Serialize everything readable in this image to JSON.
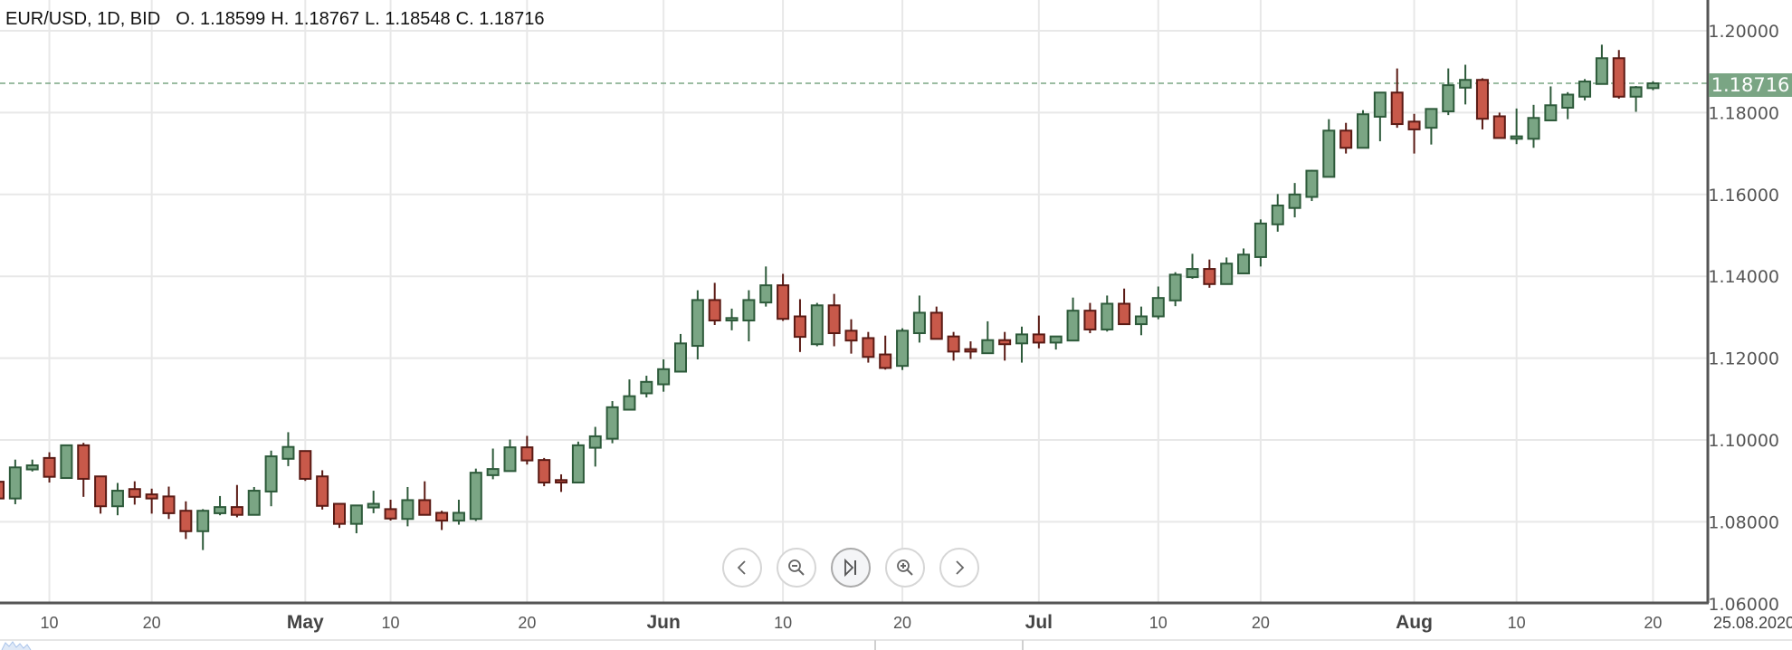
{
  "header": {
    "symbol": "EUR/USD, 1D, BID",
    "open": "O. 1.18599",
    "high": "H. 1.18767",
    "low": "L. 1.18548",
    "close": "C. 1.18716"
  },
  "current_price_label": "1.18716",
  "current_date_label": "25.08.2020",
  "nav_buttons": [
    {
      "name": "scroll-left-button",
      "icon": "chevron-left-icon"
    },
    {
      "name": "zoom-out-button",
      "icon": "zoom-out-icon"
    },
    {
      "name": "reset-to-latest-button",
      "icon": "skip-to-end-icon"
    },
    {
      "name": "zoom-in-button",
      "icon": "zoom-in-icon"
    },
    {
      "name": "scroll-right-button",
      "icon": "chevron-right-icon"
    }
  ],
  "colors": {
    "up_fill": "#7aa584",
    "up_stroke": "#2d5a3a",
    "down_fill": "#c8594a",
    "down_stroke": "#5a1a14",
    "last_price": "#7aa584"
  },
  "chart_data": {
    "type": "candlestick",
    "title": "EUR/USD, 1D, BID",
    "ylim": [
      1.06,
      1.2075
    ],
    "y_ticks": [
      "1.20000",
      "1.18000",
      "1.16000",
      "1.14000",
      "1.12000",
      "1.10000",
      "1.08000",
      "1.06000"
    ],
    "y_tick_values": [
      1.2,
      1.18,
      1.16,
      1.14,
      1.12,
      1.1,
      1.08,
      1.06
    ],
    "x_ticks": [
      {
        "label": "10",
        "index": 3,
        "bold": false
      },
      {
        "label": "20",
        "index": 9,
        "bold": false
      },
      {
        "label": "May",
        "index": 18,
        "bold": true
      },
      {
        "label": "10",
        "index": 23,
        "bold": false
      },
      {
        "label": "20",
        "index": 31,
        "bold": false
      },
      {
        "label": "Jun",
        "index": 39,
        "bold": true
      },
      {
        "label": "10",
        "index": 46,
        "bold": false
      },
      {
        "label": "20",
        "index": 53,
        "bold": false
      },
      {
        "label": "Jul",
        "index": 61,
        "bold": true
      },
      {
        "label": "10",
        "index": 68,
        "bold": false
      },
      {
        "label": "20",
        "index": 74,
        "bold": false
      },
      {
        "label": "Aug",
        "index": 83,
        "bold": true
      },
      {
        "label": "10",
        "index": 89,
        "bold": false
      },
      {
        "label": "20",
        "index": 97,
        "bold": false
      }
    ],
    "last_price": 1.18716,
    "ohlc_fields": [
      "open",
      "high",
      "low",
      "close"
    ],
    "ohlc": [
      [
        1.0898,
        1.0905,
        1.085,
        1.0857
      ],
      [
        1.0857,
        1.0952,
        1.0843,
        1.0933
      ],
      [
        1.0928,
        1.0952,
        1.0923,
        1.0938
      ],
      [
        1.0956,
        1.097,
        1.0896,
        1.091
      ],
      [
        1.0907,
        1.0987,
        1.0905,
        1.0987
      ],
      [
        1.0987,
        1.0993,
        1.0861,
        1.0905
      ],
      [
        1.0911,
        1.0911,
        1.082,
        1.0838
      ],
      [
        1.0838,
        1.0895,
        1.0816,
        1.0876
      ],
      [
        1.088,
        1.0899,
        1.0842,
        1.0861
      ],
      [
        1.0867,
        1.0881,
        1.082,
        1.0857
      ],
      [
        1.0862,
        1.0886,
        1.0807,
        1.0821
      ],
      [
        1.0827,
        1.085,
        1.0758,
        1.0777
      ],
      [
        1.0777,
        1.0831,
        1.0731,
        1.0827
      ],
      [
        1.0821,
        1.0863,
        1.0816,
        1.0836
      ],
      [
        1.0836,
        1.089,
        1.0811,
        1.0817
      ],
      [
        1.0817,
        1.0885,
        1.0817,
        1.0876
      ],
      [
        1.0874,
        1.0974,
        1.0838,
        1.096
      ],
      [
        1.0954,
        1.1019,
        1.0936,
        1.0983
      ],
      [
        1.0973,
        1.0973,
        1.09,
        1.0905
      ],
      [
        1.0911,
        1.0926,
        1.083,
        1.0839
      ],
      [
        1.0844,
        1.0844,
        1.0785,
        1.0795
      ],
      [
        1.0795,
        1.084,
        1.0772,
        1.084
      ],
      [
        1.0835,
        1.0876,
        1.0821,
        1.0844
      ],
      [
        1.0831,
        1.0854,
        1.0803,
        1.0808
      ],
      [
        1.0807,
        1.0885,
        1.0789,
        1.0853
      ],
      [
        1.0853,
        1.0899,
        1.0817,
        1.0817
      ],
      [
        1.0822,
        1.0827,
        1.078,
        1.0803
      ],
      [
        1.0803,
        1.0854,
        1.0793,
        1.0822
      ],
      [
        1.0807,
        1.093,
        1.0802,
        1.092
      ],
      [
        1.0914,
        1.0979,
        1.0904,
        1.0929
      ],
      [
        1.0924,
        1.1001,
        1.0924,
        1.0982
      ],
      [
        1.0982,
        1.101,
        1.094,
        1.095
      ],
      [
        1.0951,
        1.0956,
        1.0887,
        1.0896
      ],
      [
        1.0902,
        1.0916,
        1.0873,
        1.0896
      ],
      [
        1.0896,
        1.0996,
        1.0896,
        1.0987
      ],
      [
        1.0981,
        1.1032,
        1.0935,
        1.1009
      ],
      [
        1.1003,
        1.1095,
        1.0992,
        1.108
      ],
      [
        1.1074,
        1.1148,
        1.1074,
        1.1107
      ],
      [
        1.1114,
        1.1157,
        1.1104,
        1.1142
      ],
      [
        1.1136,
        1.1197,
        1.1118,
        1.1173
      ],
      [
        1.1167,
        1.1259,
        1.1167,
        1.1236
      ],
      [
        1.123,
        1.1366,
        1.1197,
        1.1342
      ],
      [
        1.1342,
        1.1384,
        1.1281,
        1.1292
      ],
      [
        1.1292,
        1.1321,
        1.1268,
        1.1298
      ],
      [
        1.1292,
        1.1366,
        1.1241,
        1.1342
      ],
      [
        1.1336,
        1.1424,
        1.1326,
        1.1378
      ],
      [
        1.1378,
        1.1406,
        1.1291,
        1.1296
      ],
      [
        1.1302,
        1.1344,
        1.1215,
        1.1252
      ],
      [
        1.1234,
        1.1335,
        1.1229,
        1.1329
      ],
      [
        1.1329,
        1.1357,
        1.1229,
        1.1261
      ],
      [
        1.1267,
        1.1295,
        1.1211,
        1.1243
      ],
      [
        1.1249,
        1.1264,
        1.1189,
        1.1203
      ],
      [
        1.1209,
        1.1255,
        1.1172,
        1.1176
      ],
      [
        1.1181,
        1.1273,
        1.1171,
        1.1267
      ],
      [
        1.1261,
        1.1353,
        1.1238,
        1.1311
      ],
      [
        1.1311,
        1.1326,
        1.1247,
        1.1247
      ],
      [
        1.1253,
        1.1264,
        1.1194,
        1.1216
      ],
      [
        1.1222,
        1.1241,
        1.1198,
        1.1216
      ],
      [
        1.1212,
        1.129,
        1.1212,
        1.1244
      ],
      [
        1.1244,
        1.1264,
        1.1194,
        1.1234
      ],
      [
        1.1236,
        1.1277,
        1.1189,
        1.1258
      ],
      [
        1.1258,
        1.1304,
        1.1224,
        1.1238
      ],
      [
        1.1238,
        1.1253,
        1.1221,
        1.1253
      ],
      [
        1.1243,
        1.1348,
        1.1243,
        1.1316
      ],
      [
        1.1316,
        1.1335,
        1.1261,
        1.127
      ],
      [
        1.127,
        1.1353,
        1.1265,
        1.1333
      ],
      [
        1.1333,
        1.137,
        1.1283,
        1.1283
      ],
      [
        1.1283,
        1.1326,
        1.1256,
        1.1302
      ],
      [
        1.1302,
        1.1375,
        1.1295,
        1.1347
      ],
      [
        1.1341,
        1.141,
        1.1327,
        1.1404
      ],
      [
        1.1398,
        1.1455,
        1.1394,
        1.1418
      ],
      [
        1.1418,
        1.1441,
        1.1372,
        1.1381
      ],
      [
        1.1381,
        1.1446,
        1.1381,
        1.1431
      ],
      [
        1.1407,
        1.1468,
        1.1407,
        1.1453
      ],
      [
        1.1447,
        1.1539,
        1.1424,
        1.1529
      ],
      [
        1.1527,
        1.1601,
        1.1509,
        1.1573
      ],
      [
        1.1567,
        1.1628,
        1.1544,
        1.16
      ],
      [
        1.1594,
        1.166,
        1.1584,
        1.1658
      ],
      [
        1.1643,
        1.1784,
        1.1643,
        1.1756
      ],
      [
        1.1756,
        1.1775,
        1.17,
        1.1714
      ],
      [
        1.1714,
        1.1806,
        1.1714,
        1.1796
      ],
      [
        1.179,
        1.1849,
        1.173,
        1.1849
      ],
      [
        1.1849,
        1.1908,
        1.1763,
        1.1772
      ],
      [
        1.1778,
        1.1797,
        1.17,
        1.1759
      ],
      [
        1.1763,
        1.1809,
        1.1722,
        1.1809
      ],
      [
        1.1803,
        1.1908,
        1.1794,
        1.1867
      ],
      [
        1.1861,
        1.1917,
        1.182,
        1.188
      ],
      [
        1.188,
        1.1884,
        1.1759,
        1.1785
      ],
      [
        1.1791,
        1.18,
        1.1738,
        1.1738
      ],
      [
        1.1736,
        1.181,
        1.1723,
        1.1742
      ],
      [
        1.1736,
        1.1819,
        1.1714,
        1.1787
      ],
      [
        1.1781,
        1.1864,
        1.1781,
        1.1818
      ],
      [
        1.1812,
        1.185,
        1.1784,
        1.1844
      ],
      [
        1.1839,
        1.1882,
        1.183,
        1.1876
      ],
      [
        1.187,
        1.1966,
        1.187,
        1.1933
      ],
      [
        1.1933,
        1.1953,
        1.1834,
        1.1839
      ],
      [
        1.1839,
        1.1865,
        1.1802,
        1.1862
      ],
      [
        1.18599,
        1.18767,
        1.18548,
        1.18716
      ]
    ]
  }
}
